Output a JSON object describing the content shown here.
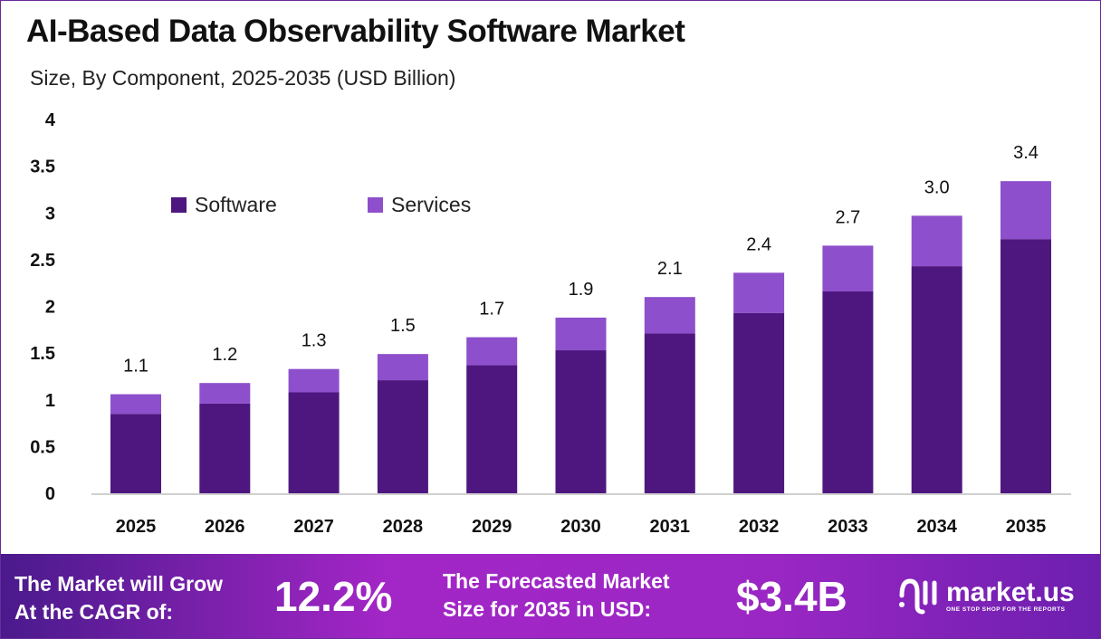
{
  "chart_data": {
    "type": "bar",
    "stacked": true,
    "title": "AI-Based Data Observability Software Market",
    "subtitle": "Size, By Component, 2025-2035 (USD Billion)",
    "categories": [
      "2025",
      "2026",
      "2027",
      "2028",
      "2029",
      "2030",
      "2031",
      "2032",
      "2033",
      "2034",
      "2035"
    ],
    "series": [
      {
        "name": "Software",
        "color": "#4E1780",
        "values": [
          0.85,
          0.96,
          1.08,
          1.21,
          1.37,
          1.53,
          1.71,
          1.93,
          2.16,
          2.43,
          2.72
        ]
      },
      {
        "name": "Services",
        "color": "#8E4FCC",
        "values": [
          0.21,
          0.22,
          0.25,
          0.28,
          0.3,
          0.35,
          0.39,
          0.43,
          0.49,
          0.54,
          0.62
        ]
      }
    ],
    "totals_labels": [
      "1.1",
      "1.2",
      "1.3",
      "1.5",
      "1.7",
      "1.9",
      "2.1",
      "2.4",
      "2.7",
      "3.0",
      "3.4"
    ],
    "ylim": [
      0,
      4
    ],
    "yticks": [
      "0",
      "0.5",
      "1",
      "1.5",
      "2",
      "2.5",
      "3",
      "3.5",
      "4"
    ],
    "grid": false,
    "legend_position": "top-left"
  },
  "footer": {
    "cagr_label_line1": "The Market will Grow",
    "cagr_label_line2": "At the CAGR of:",
    "cagr_value": "12.2%",
    "forecast_label_line1": "The Forecasted Market",
    "forecast_label_line2": "Size for 2035 in USD:",
    "forecast_value": "$3.4B",
    "logo_name": "market.us",
    "logo_tagline": "ONE STOP SHOP FOR THE REPORTS"
  }
}
